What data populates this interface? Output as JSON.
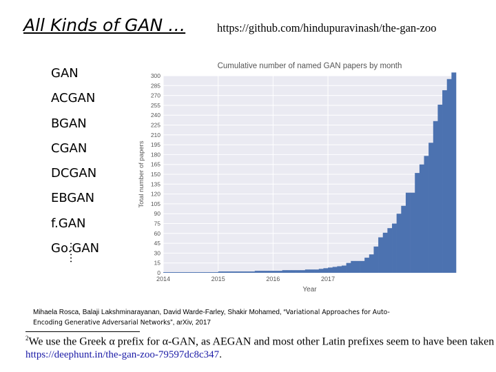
{
  "slide": {
    "title": "All Kinds of GAN …",
    "repo_url": "https://github.com/hindupuravinash/the-gan-zoo",
    "gan_list": [
      "GAN",
      "ACGAN",
      "BGAN",
      "CGAN",
      "DCGAN",
      "EBGAN",
      "f.GAN",
      "Go.GAN"
    ],
    "ellipsis": "……",
    "citation_authors": "Mihaela Rosca, Balaji Lakshminarayanan, David Warde-Farley, Shakir Mohamed, “",
    "citation_title_a": "Variational Approaches for Auto-",
    "citation_title_b": "Encoding Generative Adversarial Networks",
    "citation_tail": "”, arXiv, 2017",
    "footnote_mark": "2",
    "footnote_text": "We use the Greek α prefix for α-GAN, as AEGAN and most other Latin prefixes seem to have been taken",
    "deephunt_url": "https://deephunt.in/the-gan-zoo-79597dc8c347",
    "deephunt_tail": "."
  },
  "chart_data": {
    "type": "bar",
    "title": "Cumulative number of named GAN papers by month",
    "xlabel": "Year",
    "ylabel": "Total number of papers",
    "x_ticks": [
      "2014",
      "2015",
      "2016",
      "2017"
    ],
    "y_ticks": [
      0,
      15,
      30,
      45,
      60,
      75,
      90,
      105,
      120,
      135,
      150,
      165,
      180,
      195,
      210,
      225,
      240,
      255,
      270,
      285,
      300
    ],
    "ylim": [
      0,
      300
    ],
    "grid": true,
    "bar_color": "#4c72b0",
    "background": "#eaeaf2",
    "values": [
      1,
      1,
      1,
      1,
      1,
      1,
      1,
      1,
      1,
      1,
      1,
      1,
      2,
      2,
      2,
      2,
      2,
      2,
      2,
      2,
      3,
      3,
      3,
      3,
      3,
      3,
      4,
      4,
      4,
      4,
      4,
      5,
      5,
      5,
      6,
      7,
      8,
      9,
      10,
      11,
      15,
      18,
      18,
      18,
      23,
      28,
      40,
      54,
      61,
      68,
      75,
      90,
      102,
      122,
      122,
      152,
      165,
      178,
      198,
      231,
      256,
      278,
      295,
      305
    ]
  }
}
